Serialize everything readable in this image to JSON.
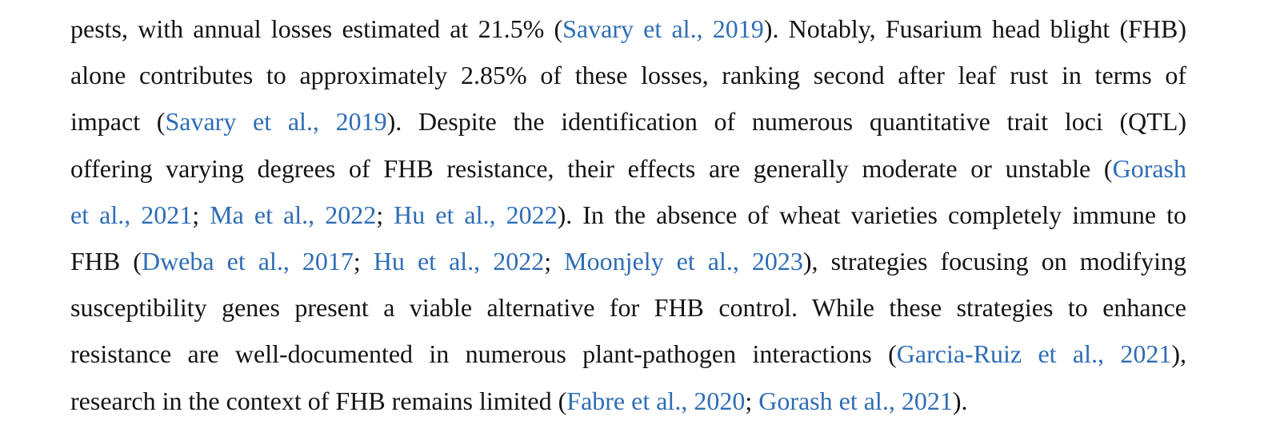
{
  "paragraph": {
    "lines": [
      [
        {
          "t": "pests, with annual losses estimated at 21.5% (",
          "c": false
        },
        {
          "t": "Savary et al., 2019",
          "c": true
        },
        {
          "t": "). Notably, Fusarium head blight (FHB)",
          "c": false
        }
      ],
      [
        {
          "t": "alone contributes to approximately 2.85% of these losses, ranking second after leaf rust in terms of",
          "c": false
        }
      ],
      [
        {
          "t": "impact (",
          "c": false
        },
        {
          "t": "Savary et al., 2019",
          "c": true
        },
        {
          "t": "). Despite the identification of numerous quantitative trait loci (QTL)",
          "c": false
        }
      ],
      [
        {
          "t": "offering varying degrees of FHB resistance, their effects are generally moderate or unstable (",
          "c": false
        },
        {
          "t": "Gorash",
          "c": true
        }
      ],
      [
        {
          "t": "et al., 2021",
          "c": true
        },
        {
          "t": "; ",
          "c": false
        },
        {
          "t": "Ma et al., 2022",
          "c": true
        },
        {
          "t": "; ",
          "c": false
        },
        {
          "t": "Hu et al., 2022",
          "c": true
        },
        {
          "t": "). In the absence of wheat varieties completely immune to",
          "c": false
        }
      ],
      [
        {
          "t": "FHB (",
          "c": false
        },
        {
          "t": "Dweba et al., 2017",
          "c": true
        },
        {
          "t": "; ",
          "c": false
        },
        {
          "t": "Hu et al., 2022",
          "c": true
        },
        {
          "t": "; ",
          "c": false
        },
        {
          "t": "Moonjely et al., 2023",
          "c": true
        },
        {
          "t": "), strategies focusing on modifying",
          "c": false
        }
      ],
      [
        {
          "t": "susceptibility genes present a viable alternative for FHB control. While these strategies to enhance",
          "c": false
        }
      ],
      [
        {
          "t": "resistance are well-documented in numerous plant-pathogen interactions (",
          "c": false
        },
        {
          "t": "Garcia-Ruiz et al., 2021",
          "c": true
        },
        {
          "t": "),",
          "c": false
        }
      ],
      [
        {
          "t": "research in the context of FHB remains limited (",
          "c": false
        },
        {
          "t": "Fabre et al., 2020",
          "c": true
        },
        {
          "t": "; ",
          "c": false
        },
        {
          "t": "Gorash et al., 2021",
          "c": true
        },
        {
          "t": ").",
          "c": false
        }
      ]
    ]
  }
}
